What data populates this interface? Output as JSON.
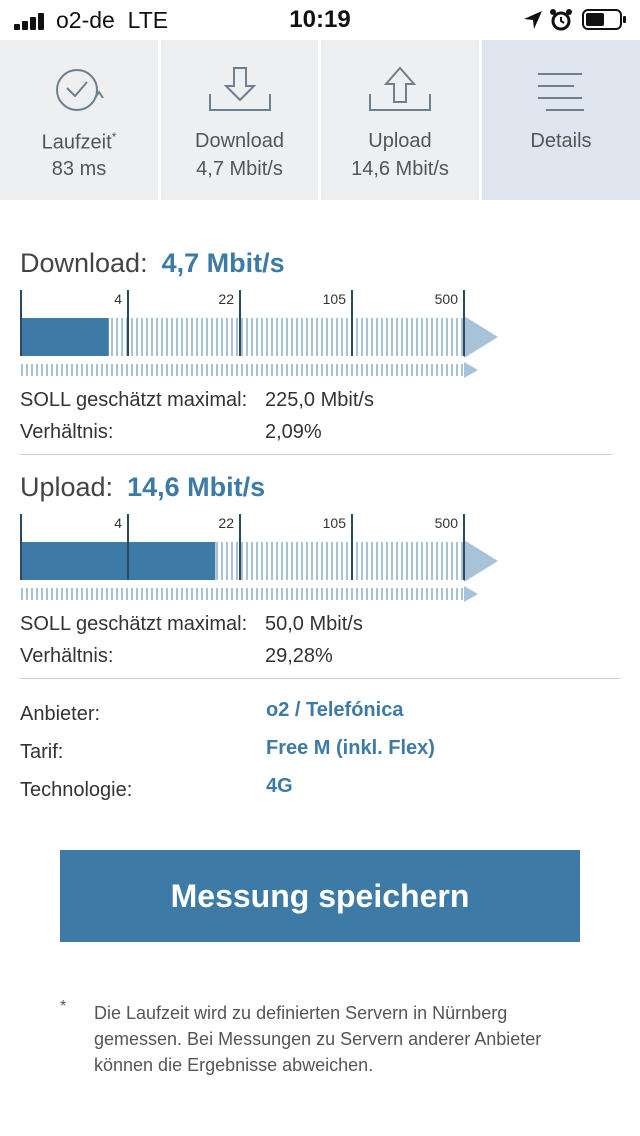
{
  "status_bar": {
    "carrier": "o2-de",
    "network": "LTE",
    "time": "10:19"
  },
  "tabs": [
    {
      "label": "Laufzeit",
      "mark": "*",
      "value": "83 ms",
      "icon": "timer-icon"
    },
    {
      "label": "Download",
      "value": "4,7 Mbit/s",
      "icon": "download-icon"
    },
    {
      "label": "Upload",
      "value": "14,6 Mbit/s",
      "icon": "upload-icon"
    },
    {
      "label": "Details",
      "icon": "list-icon",
      "active": true
    }
  ],
  "download": {
    "title": "Download:",
    "value": "4,7 Mbit/s",
    "scale_ticks": [
      "4",
      "22",
      "105",
      "500"
    ],
    "measured_fraction": 0.2,
    "soll_label": "SOLL geschätzt maximal:",
    "soll_value": "225,0 Mbit/s",
    "ratio_label": "Verhältnis:",
    "ratio_value": "2,09%"
  },
  "upload": {
    "title": "Upload:",
    "value": "14,6 Mbit/s",
    "scale_ticks": [
      "4",
      "22",
      "105",
      "500"
    ],
    "measured_fraction": 0.44,
    "soll_label": "SOLL geschätzt maximal:",
    "soll_value": "50,0 Mbit/s",
    "ratio_label": "Verhältnis:",
    "ratio_value": "29,28%"
  },
  "info": [
    {
      "label": "Anbieter:",
      "value": "o2 / Telefónica"
    },
    {
      "label": "Tarif:",
      "value": "Free M (inkl. Flex)"
    },
    {
      "label": "Technologie:",
      "value": "4G"
    }
  ],
  "save_button": "Messung speichern",
  "footnote": {
    "mark": "*",
    "text": "Die Laufzeit wird zu definierten Servern in Nürnberg gemessen. Bei Messungen zu Servern anderer Anbieter können die Ergebnisse abweichen."
  },
  "colors": {
    "accent": "#3d7aa6",
    "tab_bg": "#eeeff1",
    "tab_active_bg": "#dfe5ee",
    "scale_light": "#a8c3d8"
  }
}
